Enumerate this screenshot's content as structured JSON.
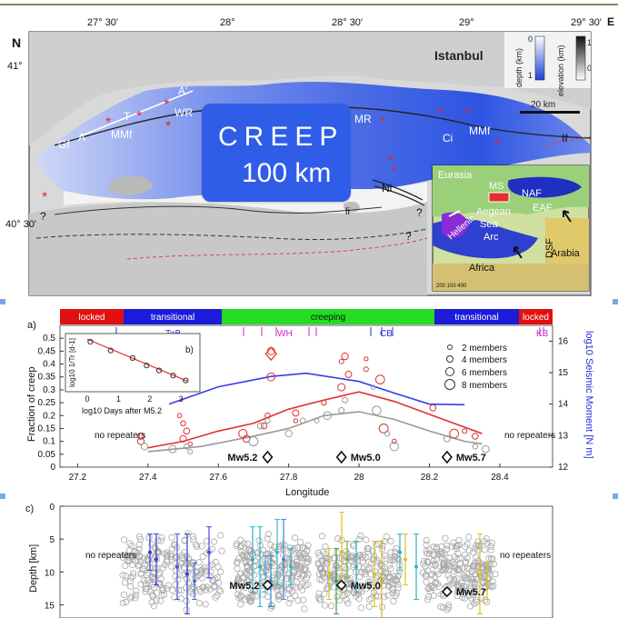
{
  "map": {
    "lon_ticks": [
      "27° 30'",
      "28°",
      "28° 30'",
      "29°",
      "29° 30'"
    ],
    "lat_ticks": [
      "41°",
      "40° 30'"
    ],
    "north_label": "N",
    "panel_letter_right": "E",
    "city": "Istanbul",
    "place_labels": [
      "A'",
      "T",
      "WR",
      "MMf",
      "Gf",
      "A",
      "MR",
      "Ci",
      "MMf",
      "If",
      "Ni",
      "li",
      "?",
      "?",
      "?"
    ],
    "depth_scale": {
      "title": "depth (km)",
      "ticks": [
        "0",
        "1"
      ]
    },
    "elevation_scale": {
      "title": "elevation (km)",
      "ticks": [
        "1",
        "0"
      ]
    },
    "scale_bar": "20 km",
    "inset_labels": [
      "Eurasia",
      "MS",
      "NAF",
      "EAF",
      "Aegean",
      "Sea",
      "Hellenic",
      "Arc",
      "DSF",
      "Arabia",
      "Africa"
    ],
    "inset_scale": "200 100 400"
  },
  "overlay": {
    "line1": "CREEP",
    "line2": "100 km",
    "accent": "#2f5de8"
  },
  "panel_a": {
    "letter": "a)",
    "inset_letter": "b)",
    "segments": [
      {
        "label": "locked",
        "color": "#e01010"
      },
      {
        "label": "transitional",
        "color": "#1c1cd8"
      },
      {
        "label": "creeping",
        "color": "#22dd22"
      },
      {
        "label": "transitional",
        "color": "#1c1cd8"
      },
      {
        "label": "locked",
        "color": "#e01010"
      }
    ],
    "region_labels": [
      "TeB",
      "WH",
      "CB",
      "KB"
    ],
    "ylabel": "Fraction of creep",
    "ylabel_right": "log10 Seismic Moment [N m]",
    "xlabel": "Longitude",
    "no_repeaters_left": "no repeaters",
    "no_repeaters_right": "no repeaters",
    "legend": [
      "2 members",
      "4 members",
      "6 members",
      "8 members"
    ],
    "quakes": [
      "Mw5.2",
      "Mw5.0",
      "Mw5.7"
    ],
    "inset_xlabel": "log10 Days after M5.2",
    "inset_ylabel": "log10 1/Tr [d-1]"
  },
  "panel_c": {
    "letter": "c)",
    "ylabel": "Depth [km]",
    "no_repeaters_left": "no repeaters",
    "no_repeaters_right": "no repeaters",
    "quakes": [
      "Mw5.2",
      "Mw5.0",
      "Mw5.7"
    ]
  },
  "chart_data": [
    {
      "type": "line",
      "xlabel": "Longitude",
      "ylabel": "Fraction of creep",
      "ylabel_right": "log10 Seismic Moment [N m]",
      "xlim": [
        27.15,
        28.55
      ],
      "ylim": [
        0,
        0.55
      ],
      "ylim_right": [
        12,
        16.5
      ],
      "x_ticks": [
        27.2,
        27.4,
        27.6,
        27.8,
        28,
        28.2,
        28.4
      ],
      "y_ticks": [
        0,
        0.05,
        0.1,
        0.15,
        0.2,
        0.25,
        0.3,
        0.35,
        0.4,
        0.45,
        0.5
      ],
      "y_ticks_right": [
        12,
        13,
        14,
        15,
        16
      ],
      "series": [
        {
          "axis": "right",
          "color": "#3a3aee",
          "x": [
            27.46,
            27.6,
            27.75,
            27.85,
            28.0,
            28.1,
            28.2,
            28.3
          ],
          "y": [
            14.0,
            14.55,
            14.88,
            14.98,
            14.72,
            14.35,
            14.0,
            13.98
          ]
        },
        {
          "axis": "left",
          "color": "#e03030",
          "x": [
            27.4,
            27.5,
            27.6,
            27.7,
            27.8,
            27.9,
            28.0,
            28.1,
            28.2,
            28.3,
            28.35
          ],
          "y": [
            0.075,
            0.1,
            0.14,
            0.17,
            0.225,
            0.26,
            0.292,
            0.255,
            0.205,
            0.155,
            0.13
          ]
        },
        {
          "axis": "left",
          "color": "#9a9a9a",
          "x": [
            27.4,
            27.55,
            27.7,
            27.8,
            27.9,
            28.0,
            28.1,
            28.2,
            28.3,
            28.35
          ],
          "y": [
            0.06,
            0.08,
            0.12,
            0.15,
            0.2,
            0.215,
            0.185,
            0.14,
            0.1,
            0.09
          ]
        }
      ],
      "legend": [
        "2 members",
        "4 members",
        "6 members",
        "8 members"
      ],
      "events": [
        {
          "label": "Mw5.2",
          "x": 27.74
        },
        {
          "label": "Mw5.0",
          "x": 27.95
        },
        {
          "label": "Mw5.7",
          "x": 28.25
        }
      ]
    },
    {
      "type": "scatter",
      "xlabel": "log10 Days after M5.2",
      "ylabel": "log10 1/Tr [d-1]",
      "x_ticks": [
        0,
        1,
        2,
        3
      ],
      "x": [
        0.1,
        0.75,
        1.45,
        1.9,
        2.3,
        2.75,
        3.15
      ],
      "y": [
        0.0,
        -0.7,
        -1.3,
        -1.9,
        -2.3,
        -2.7,
        -3.1
      ]
    },
    {
      "type": "scatter",
      "ylabel": "Depth [km]",
      "ylim": [
        0,
        17
      ],
      "y_ticks": [
        0,
        5,
        10,
        15
      ],
      "events": [
        {
          "label": "Mw5.2",
          "x": 27.74
        },
        {
          "label": "Mw5.0",
          "x": 27.95
        },
        {
          "label": "Mw5.7",
          "x": 28.25
        }
      ]
    }
  ]
}
